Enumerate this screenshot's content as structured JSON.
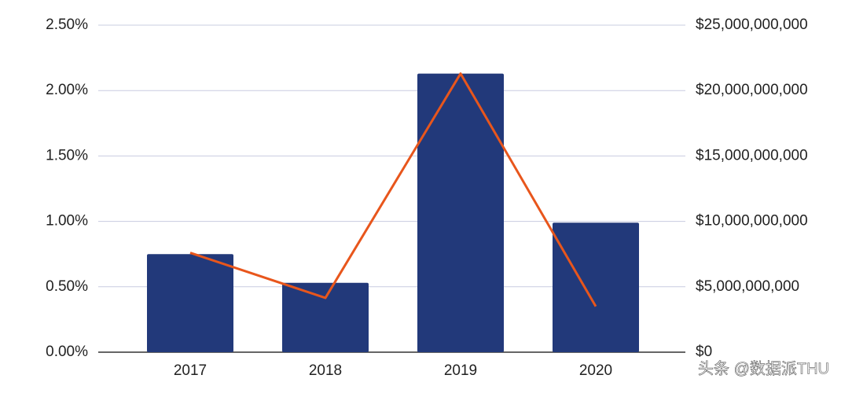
{
  "chart_data": {
    "type": "bar_line",
    "categories": [
      "2017",
      "2018",
      "2019",
      "2020"
    ],
    "series": [
      {
        "type": "bar",
        "color": "#22397a",
        "values": [
          0.75,
          0.53,
          2.13,
          0.99
        ],
        "axis": "y"
      },
      {
        "type": "line",
        "color": "#e8561c",
        "values": [
          7600000000,
          4150000000,
          21300000000,
          3500000000
        ],
        "axis": "y2"
      }
    ],
    "ylim": [
      0,
      2.5
    ],
    "yticks": [
      {
        "value": 0,
        "label": "0.00%"
      },
      {
        "value": 0.5,
        "label": "0.50%"
      },
      {
        "value": 1,
        "label": "1.00%"
      },
      {
        "value": 1.5,
        "label": "1.50%"
      },
      {
        "value": 2,
        "label": "2.00%"
      },
      {
        "value": 2.5,
        "label": "2.50%"
      }
    ],
    "y2lim": [
      0,
      25000000000
    ],
    "y2ticks": [
      {
        "value": 0,
        "label": "$0"
      },
      {
        "value": 5000000000,
        "label": "$5,000,000,000"
      },
      {
        "value": 10000000000,
        "label": "$10,000,000,000"
      },
      {
        "value": 15000000000,
        "label": "$15,000,000,000"
      },
      {
        "value": 20000000000,
        "label": "$20,000,000,000"
      },
      {
        "value": 25000000000,
        "label": "$25,000,000,000"
      }
    ],
    "grid": true,
    "watermark": "头条 @数据派THU"
  }
}
